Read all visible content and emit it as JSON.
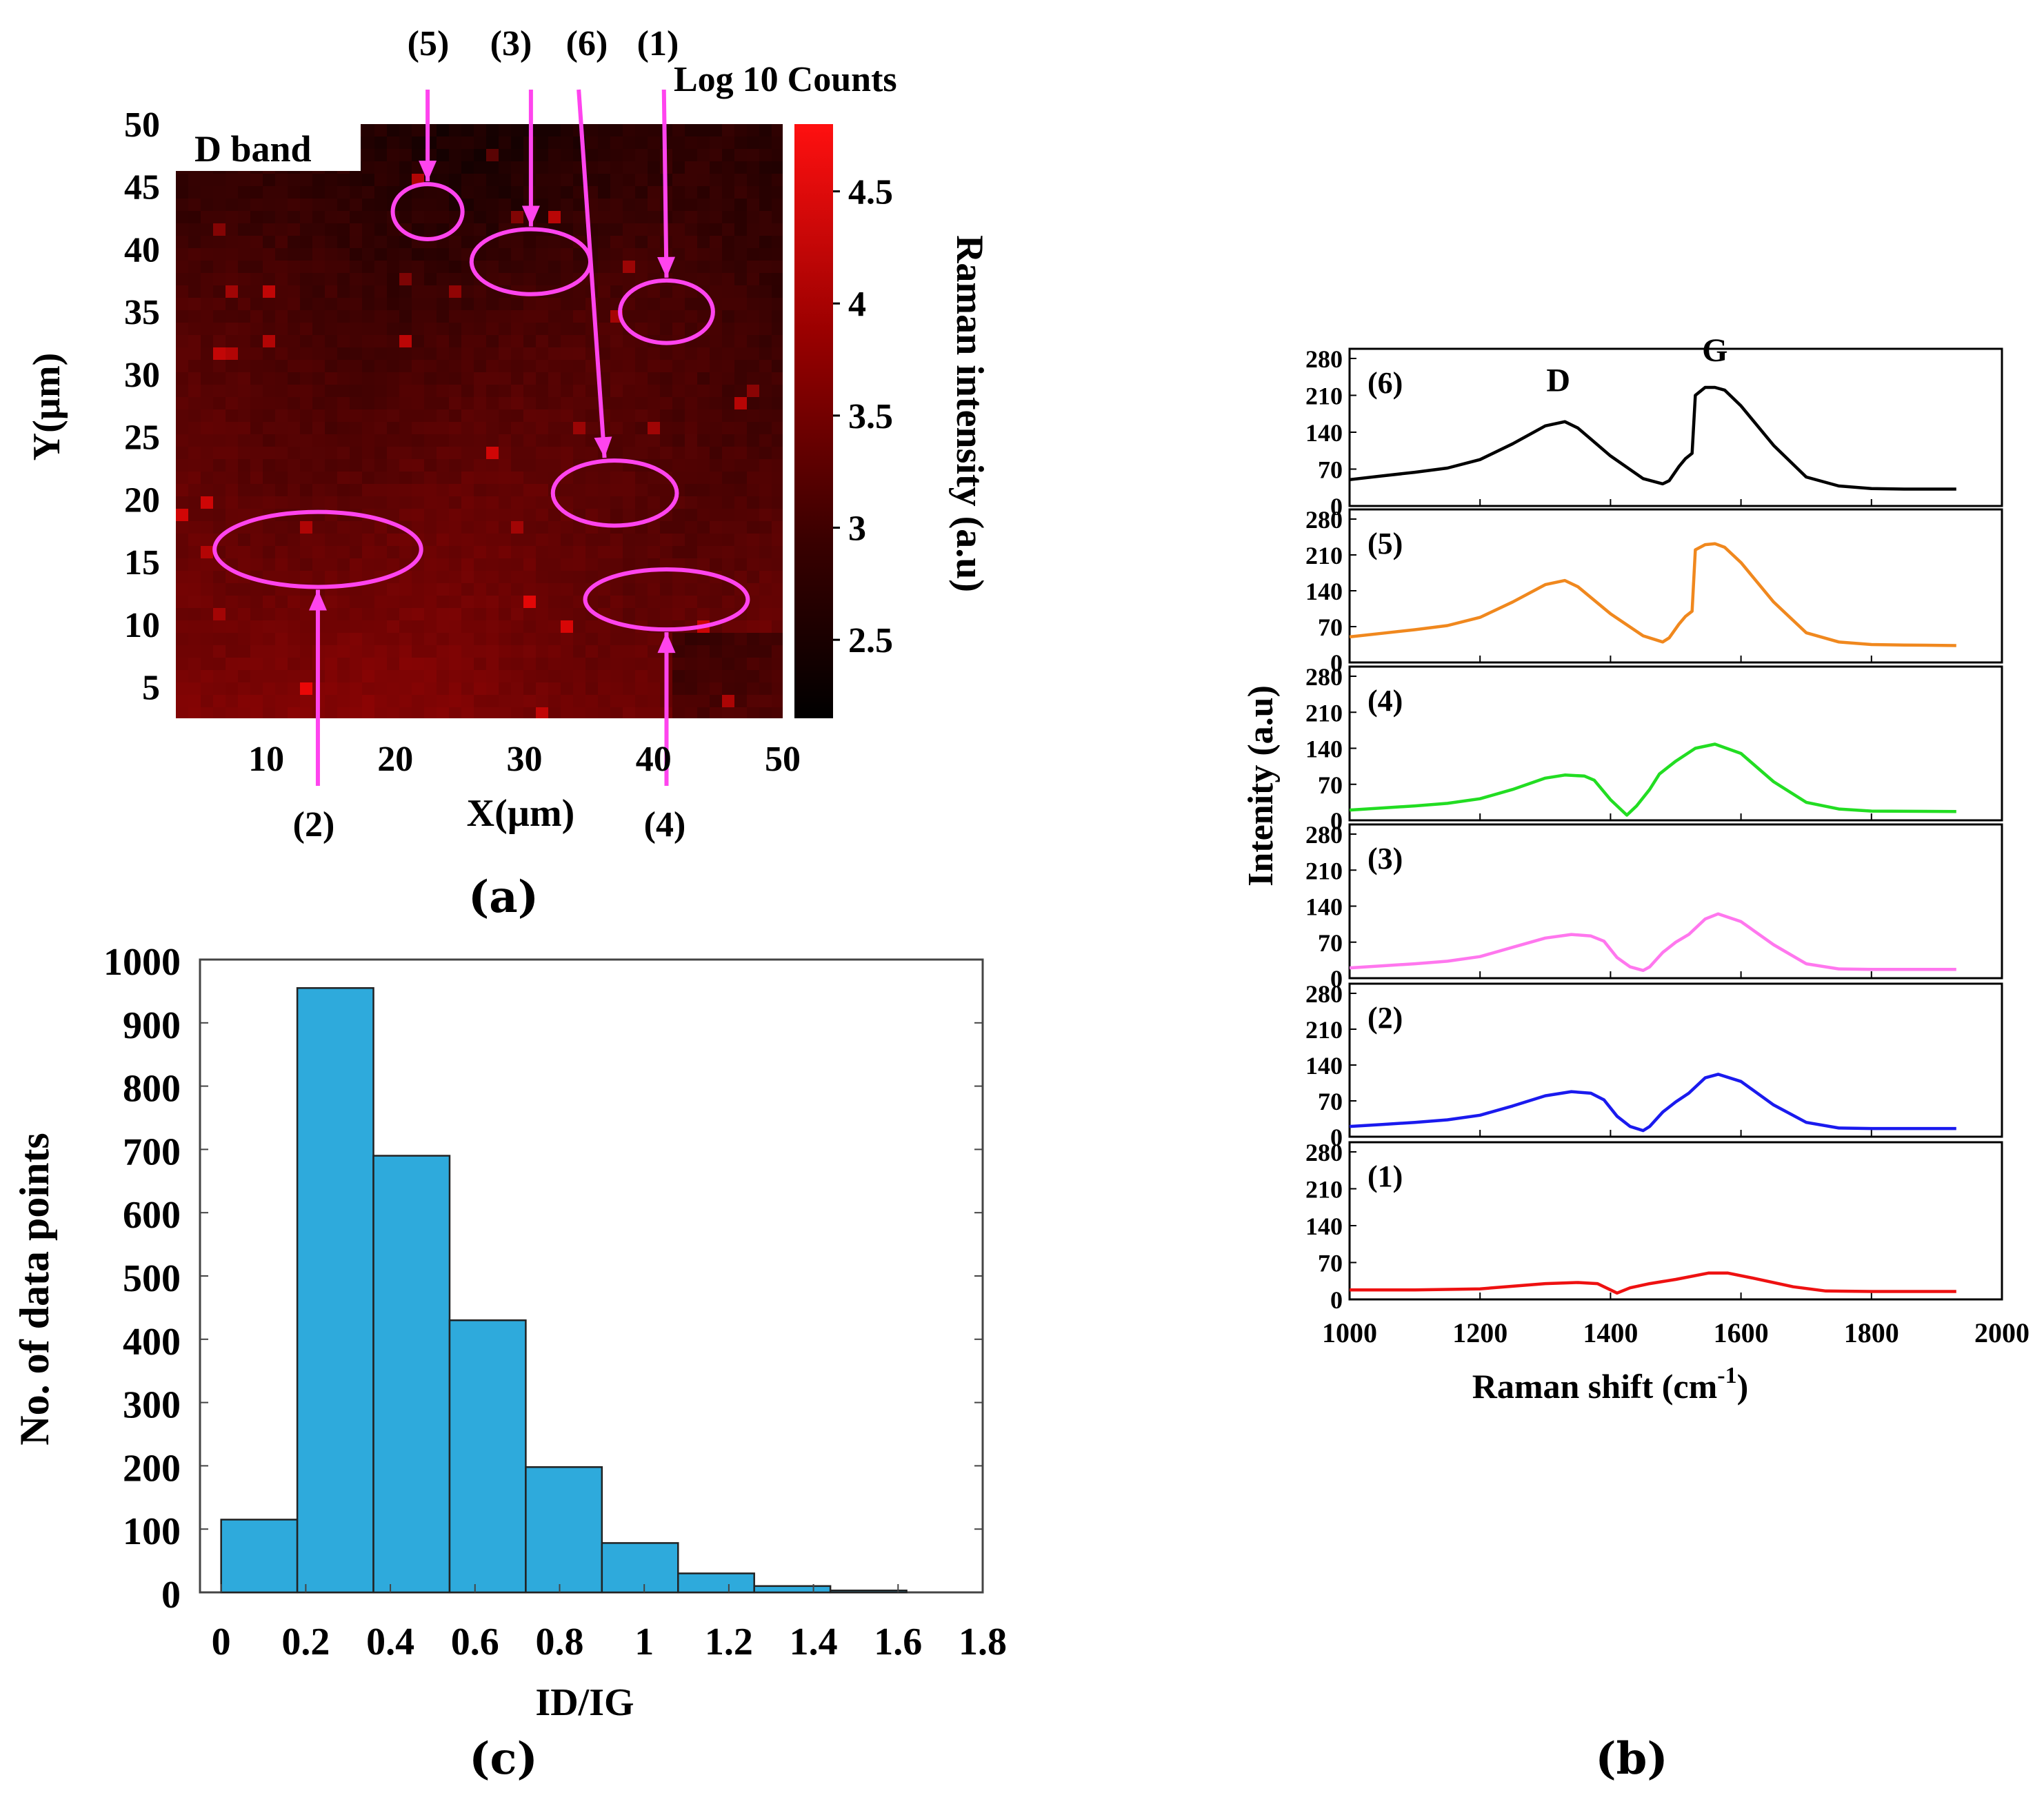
{
  "panel_labels": {
    "a": "(a)",
    "b": "(b)",
    "c": "(c)"
  },
  "chart_data": [
    {
      "id": "a",
      "type": "heatmap",
      "title": "D band",
      "xlabel": "X(µm)",
      "ylabel": "Y(µm)",
      "xlim": [
        3,
        50
      ],
      "ylim": [
        2.5,
        50
      ],
      "xticks": [
        10,
        20,
        30,
        40,
        50
      ],
      "yticks": [
        5,
        10,
        15,
        20,
        25,
        30,
        35,
        40,
        45,
        50
      ],
      "colorbar": {
        "title": "Log 10 Counts",
        "label": "Raman intensity (a.u)",
        "range": [
          2.15,
          4.8
        ],
        "ticks": [
          "2.5",
          "3",
          "3.5",
          "4",
          "4.5"
        ],
        "tick_values": [
          2.5,
          3.0,
          3.5,
          4.0,
          4.5
        ],
        "color_low": "#000000",
        "color_high": "#ff0000"
      },
      "regions": [
        {
          "label": "(1)",
          "center": [
            41,
            35
          ],
          "radius": [
            3.6,
            2.5
          ]
        },
        {
          "label": "(2)",
          "center": [
            14,
            16
          ],
          "radius": [
            8,
            3
          ]
        },
        {
          "label": "(3)",
          "center": [
            30.5,
            39
          ],
          "radius": [
            4.6,
            2.6
          ]
        },
        {
          "label": "(4)",
          "center": [
            41,
            12
          ],
          "radius": [
            6.3,
            2.4
          ]
        },
        {
          "label": "(5)",
          "center": [
            22.5,
            43
          ],
          "radius": [
            2.7,
            2.2
          ]
        },
        {
          "label": "(6)",
          "center": [
            37,
            20.5
          ],
          "radius": [
            4.8,
            2.6
          ]
        }
      ],
      "arrow_labels": [
        "(5)",
        "(3)",
        "(6)",
        "(1)",
        "(2)",
        "(4)"
      ],
      "accent_color": "#ff44ee"
    },
    {
      "id": "b",
      "type": "line",
      "xlabel": "Raman shift (cm",
      "xlabel_sup": "-1",
      "xlabel_close": ")",
      "ylabel": "Intenity (a.u)",
      "xlim": [
        1000,
        2000
      ],
      "ylim": [
        0,
        280
      ],
      "xticks": [
        1000,
        1200,
        1400,
        1600,
        1800,
        2000
      ],
      "yticks": [
        0,
        70,
        140,
        210,
        280
      ],
      "annotations": [
        {
          "text": "D",
          "x": 1320,
          "y": 205
        },
        {
          "text": "G",
          "x": 1560,
          "y": 262
        }
      ],
      "series": [
        {
          "name": "(6)",
          "color": "#000000",
          "x": [
            1000,
            1050,
            1100,
            1150,
            1200,
            1250,
            1300,
            1330,
            1350,
            1400,
            1450,
            1480,
            1490,
            1505,
            1515,
            1525,
            1530,
            1545,
            1560,
            1575,
            1600,
            1650,
            1700,
            1750,
            1800,
            1850,
            1930
          ],
          "y": [
            50,
            57,
            64,
            72,
            88,
            118,
            152,
            160,
            148,
            95,
            52,
            42,
            48,
            75,
            90,
            100,
            210,
            225,
            225,
            220,
            190,
            115,
            55,
            38,
            33,
            32,
            32
          ]
        },
        {
          "name": "(5)",
          "color": "#f0881e",
          "x": [
            1000,
            1050,
            1100,
            1150,
            1200,
            1250,
            1300,
            1330,
            1350,
            1400,
            1450,
            1480,
            1490,
            1505,
            1515,
            1525,
            1530,
            1545,
            1560,
            1575,
            1600,
            1650,
            1700,
            1750,
            1800,
            1850,
            1930
          ],
          "y": [
            50,
            57,
            64,
            72,
            88,
            118,
            152,
            160,
            148,
            95,
            52,
            40,
            48,
            75,
            90,
            100,
            220,
            230,
            232,
            225,
            195,
            118,
            58,
            40,
            35,
            34,
            33
          ]
        },
        {
          "name": "(4)",
          "color": "#22dd22",
          "x": [
            1000,
            1050,
            1100,
            1150,
            1200,
            1250,
            1300,
            1330,
            1360,
            1375,
            1400,
            1425,
            1440,
            1460,
            1475,
            1500,
            1530,
            1560,
            1600,
            1650,
            1700,
            1750,
            1800,
            1930
          ],
          "y": [
            20,
            24,
            28,
            33,
            42,
            60,
            82,
            88,
            86,
            78,
            40,
            10,
            28,
            60,
            90,
            115,
            140,
            148,
            130,
            75,
            35,
            22,
            18,
            17
          ]
        },
        {
          "name": "(3)",
          "color": "#ff77ee",
          "x": [
            1000,
            1050,
            1100,
            1150,
            1200,
            1250,
            1300,
            1340,
            1370,
            1390,
            1410,
            1430,
            1450,
            1460,
            1480,
            1500,
            1520,
            1545,
            1565,
            1600,
            1650,
            1700,
            1750,
            1800,
            1930
          ],
          "y": [
            20,
            24,
            28,
            33,
            42,
            60,
            78,
            85,
            82,
            72,
            40,
            22,
            15,
            22,
            50,
            70,
            85,
            115,
            125,
            110,
            65,
            28,
            18,
            17,
            17
          ]
        },
        {
          "name": "(2)",
          "color": "#1a1aee",
          "x": [
            1000,
            1050,
            1100,
            1150,
            1200,
            1250,
            1300,
            1340,
            1370,
            1390,
            1410,
            1430,
            1450,
            1460,
            1480,
            1500,
            1520,
            1545,
            1565,
            1600,
            1650,
            1700,
            1750,
            1800,
            1930
          ],
          "y": [
            20,
            24,
            28,
            33,
            42,
            60,
            80,
            88,
            85,
            72,
            40,
            20,
            12,
            20,
            48,
            68,
            85,
            115,
            122,
            108,
            62,
            28,
            17,
            16,
            16
          ]
        },
        {
          "name": "(1)",
          "color": "#ee1111",
          "x": [
            1000,
            1100,
            1200,
            1250,
            1300,
            1350,
            1380,
            1400,
            1410,
            1430,
            1460,
            1500,
            1550,
            1580,
            1620,
            1680,
            1730,
            1800,
            1930
          ],
          "y": [
            18,
            18,
            20,
            25,
            30,
            32,
            30,
            18,
            12,
            22,
            30,
            38,
            50,
            50,
            40,
            24,
            16,
            15,
            15
          ]
        }
      ]
    },
    {
      "id": "c",
      "type": "bar",
      "xlabel": "ID/IG",
      "ylabel": "No. of data points",
      "xlim": [
        -0.05,
        1.8
      ],
      "ylim": [
        0,
        1000
      ],
      "xticks": [
        0,
        0.2,
        0.4,
        0.6,
        0.8,
        1,
        1.2,
        1.4,
        1.6,
        1.8
      ],
      "xtick_labels": [
        "0",
        "0.2",
        "0.4",
        "0.6",
        "0.8",
        "1",
        "1.2",
        "1.4",
        "1.6",
        "1.8"
      ],
      "yticks": [
        0,
        100,
        200,
        300,
        400,
        500,
        600,
        700,
        800,
        900,
        1000
      ],
      "bin_edges": [
        0,
        0.18,
        0.36,
        0.54,
        0.72,
        0.9,
        1.08,
        1.26,
        1.44,
        1.62
      ],
      "values": [
        115,
        955,
        690,
        430,
        198,
        78,
        30,
        10,
        3
      ],
      "bar_color": "#2eaadc"
    }
  ]
}
